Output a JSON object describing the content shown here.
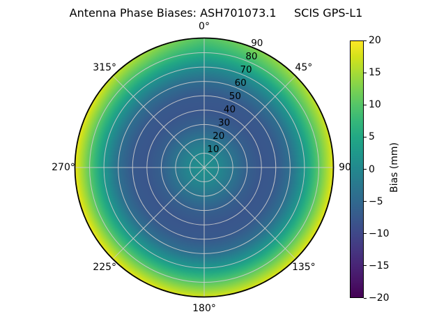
{
  "title": "Antenna Phase Biases: ASH701073.1     SCIS GPS-L1",
  "chart_data": {
    "type": "heatmap",
    "projection": "polar",
    "title": "Antenna Phase Biases: ASH701073.1     SCIS GPS-L1",
    "antenna": "ASH701073.1",
    "calibration": "SCIS",
    "signal": "GPS-L1",
    "theta_ticks": [
      {
        "deg": 0,
        "label": "0°"
      },
      {
        "deg": 45,
        "label": "45°"
      },
      {
        "deg": 90,
        "label": "90"
      },
      {
        "deg": 135,
        "label": "135°"
      },
      {
        "deg": 180,
        "label": "180°"
      },
      {
        "deg": 225,
        "label": "225°"
      },
      {
        "deg": 270,
        "label": "270°"
      },
      {
        "deg": 315,
        "label": "315°"
      }
    ],
    "radial_ticks": [
      10,
      20,
      30,
      40,
      50,
      60,
      70,
      80,
      90
    ],
    "radial_label_azimuth_deg": 22.5,
    "radial_max": 90,
    "theta_grid_step_deg": 45,
    "radial_grid_step": 10,
    "grid_color": "#cccccc",
    "outline_color": "#000000",
    "azimuth_deg": [
      0,
      30,
      60,
      90,
      120,
      150,
      180,
      210,
      240,
      270,
      300,
      330
    ],
    "zenith_deg": [
      0,
      10,
      20,
      30,
      40,
      50,
      60,
      70,
      80,
      90
    ],
    "bias_mm": [
      [
        1.5,
        0,
        -3,
        -6.5,
        -8,
        -7.5,
        -4.5,
        0.5,
        6.0,
        10.0
      ],
      [
        1.5,
        0,
        -3,
        -6.5,
        -8,
        -7.5,
        -4.0,
        1.5,
        8.5,
        13.5
      ],
      [
        1.5,
        0,
        -3,
        -6.5,
        -8,
        -7.5,
        -4.0,
        2.5,
        10.0,
        16.5
      ],
      [
        1.5,
        0,
        -3,
        -6.5,
        -8,
        -7.5,
        -4.0,
        2.5,
        10.5,
        18.5
      ],
      [
        1.5,
        0,
        -3,
        -6.5,
        -8,
        -7.5,
        -4.0,
        2.5,
        10.5,
        18.5
      ],
      [
        1.5,
        0,
        -3,
        -6.5,
        -8,
        -7.5,
        -4.0,
        2.5,
        10.5,
        18.0
      ],
      [
        1.5,
        0,
        -3,
        -6.5,
        -8,
        -7.5,
        -4.0,
        2.5,
        10.0,
        17.5
      ],
      [
        1.5,
        0,
        -3,
        -6.5,
        -8,
        -7.5,
        -4.0,
        2.5,
        10.5,
        18.5
      ],
      [
        1.5,
        0,
        -3,
        -6.5,
        -8,
        -7.5,
        -4.0,
        2.5,
        10.5,
        19.0
      ],
      [
        1.5,
        0,
        -3,
        -6.5,
        -8,
        -7.5,
        -4.0,
        2.5,
        10.5,
        19.0
      ],
      [
        1.5,
        0,
        -3,
        -6.5,
        -8,
        -7.5,
        -4.0,
        2.5,
        10.5,
        18.5
      ],
      [
        1.5,
        0,
        -3,
        -6.5,
        -8,
        -7.5,
        -4.2,
        1.8,
        9.0,
        15.0
      ]
    ],
    "colorbar": {
      "label": "Bias (mm)",
      "min": -20,
      "max": 20,
      "ticks": [
        20,
        15,
        10,
        5,
        0,
        -5,
        -10,
        -15,
        -20
      ],
      "tick_labels": [
        "20",
        "15",
        "10",
        "5",
        "0",
        "−5",
        "−10",
        "−15",
        "−20"
      ]
    },
    "colormap": {
      "name": "viridis",
      "colors": [
        "#440154",
        "#481467",
        "#482576",
        "#453781",
        "#3f4889",
        "#38598c",
        "#30698e",
        "#2a788e",
        "#23888e",
        "#1f988b",
        "#22a884",
        "#35b779",
        "#54c568",
        "#7ad151",
        "#a5db36",
        "#d2e21b",
        "#fde725"
      ]
    }
  }
}
